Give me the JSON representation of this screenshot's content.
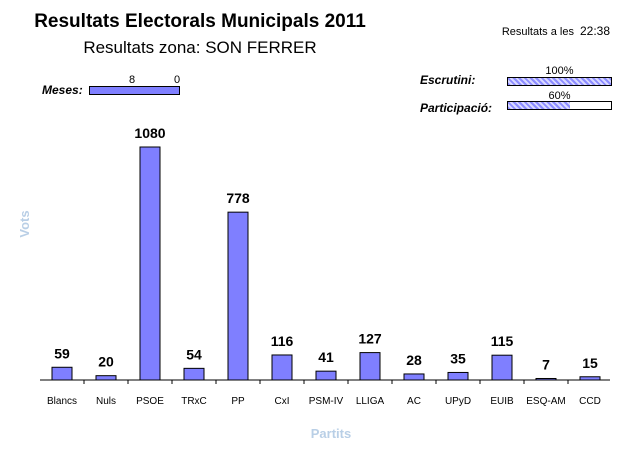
{
  "header": {
    "title": "Resultats Electorals Municipals 2011",
    "subtitle": "Resultats zona: SON FERRER",
    "time_label": "Resultats a les",
    "time_value": "22:38"
  },
  "meses": {
    "label": "Meses:",
    "counted": "8",
    "pending": "0",
    "fraction": 1.0
  },
  "escrutini": {
    "label": "Escrutini:",
    "value_text": "100%",
    "fraction": 1.0
  },
  "participacio": {
    "label": "Participació:",
    "value_text": "60%",
    "fraction": 0.6
  },
  "colors": {
    "bar": "#7f7fff",
    "axis_title": "#b9cfe6"
  },
  "chart_data": {
    "type": "bar",
    "xlabel": "Partits",
    "ylabel": "Vots",
    "categories": [
      "Blancs",
      "Nuls",
      "PSOE",
      "TRxC",
      "PP",
      "CxI",
      "PSM-IV",
      "LLIGA",
      "AC",
      "UPyD",
      "EUIB",
      "ESQ-AM",
      "CCD"
    ],
    "values": [
      59,
      20,
      1080,
      54,
      778,
      116,
      41,
      127,
      28,
      35,
      115,
      7,
      15
    ],
    "ylim": [
      0,
      1080
    ],
    "grid": false,
    "legend": "none"
  }
}
